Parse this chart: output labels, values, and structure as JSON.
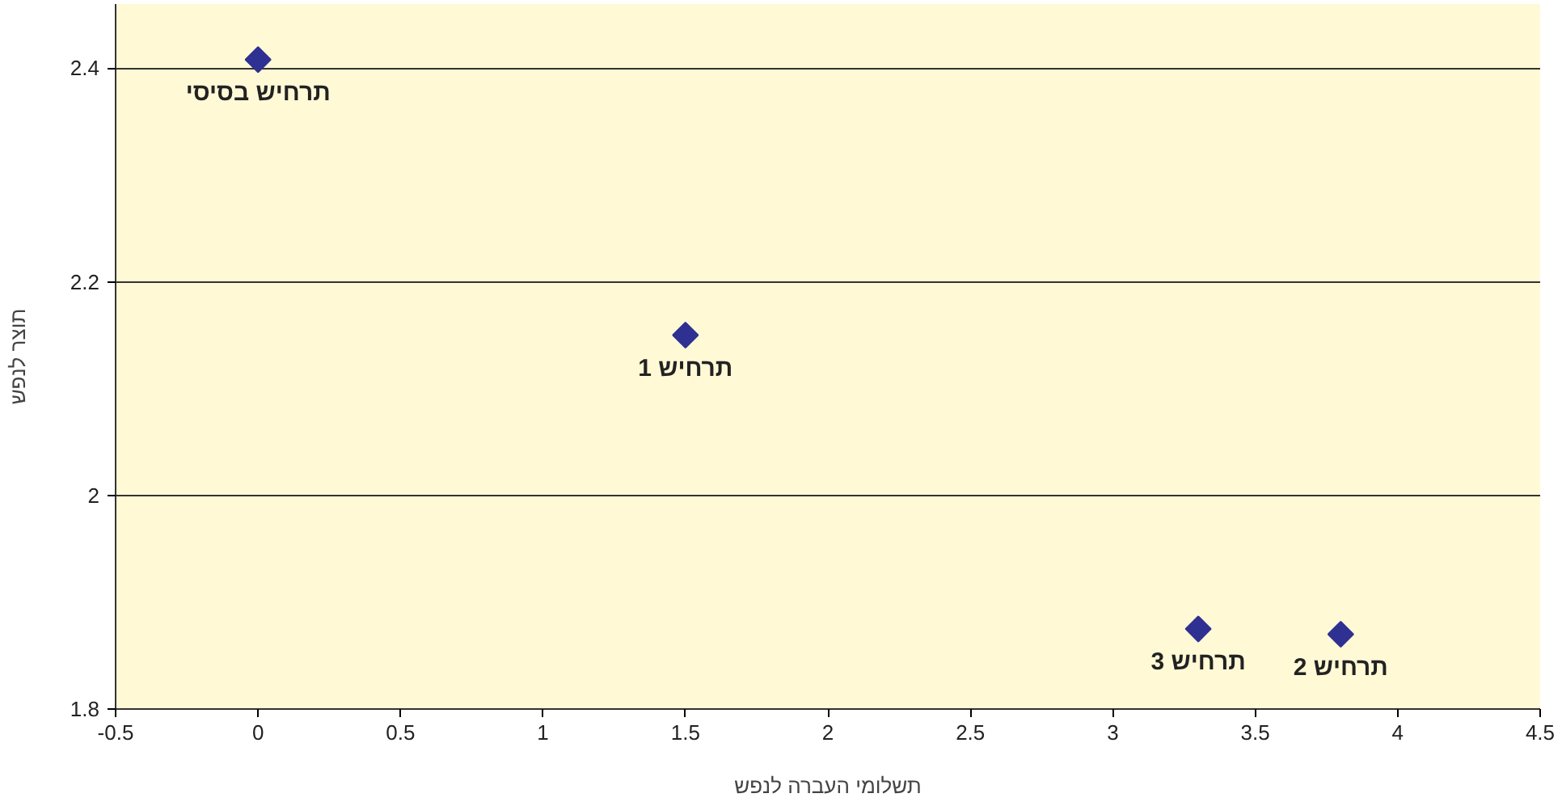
{
  "chart_data": {
    "type": "scatter",
    "xlabel": "תשלומי העברה לנפש",
    "ylabel": "תוצר לנפש",
    "x": [
      0,
      1.5,
      3.3,
      3.8
    ],
    "series": [
      {
        "color": "#2e3192",
        "values": [
          2.408,
          2.15,
          1.875,
          1.87
        ]
      }
    ],
    "marker": "diamond",
    "xlim": [
      -0.5,
      4.5
    ],
    "xticks": [
      -0.5,
      0,
      0.5,
      1,
      1.5,
      2,
      2.5,
      3,
      3.5,
      4,
      4.5
    ],
    "ylim": [
      1.8,
      2.46
    ],
    "yticks": [
      1.8,
      2,
      2.2,
      2.4
    ],
    "grid": "y",
    "annotations": [
      {
        "text": "תרחיש בסיסי",
        "x": 0,
        "y": 2.408
      },
      {
        "text": "תרחיש 1",
        "x": 1.5,
        "y": 2.15
      },
      {
        "text": "תרחיש 3",
        "x": 3.3,
        "y": 1.875
      },
      {
        "text": "תרחיש 2",
        "x": 3.8,
        "y": 1.87
      }
    ]
  }
}
